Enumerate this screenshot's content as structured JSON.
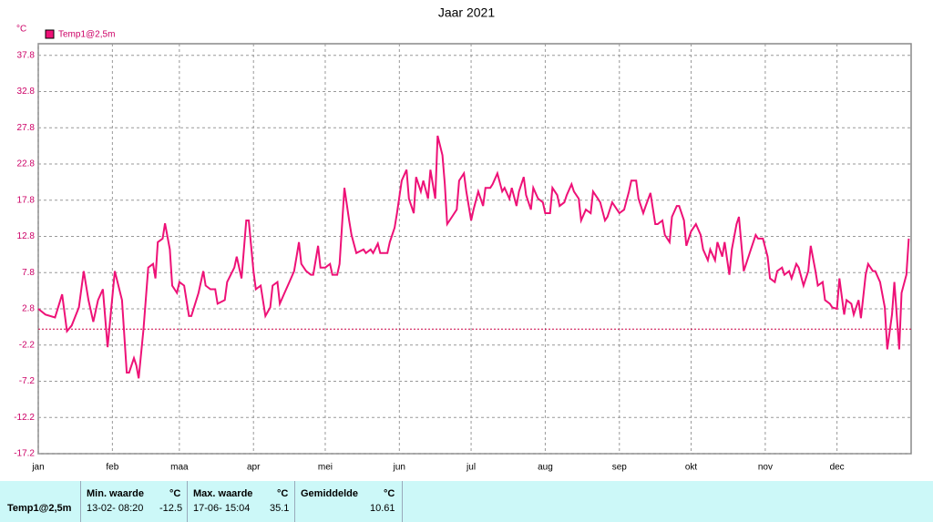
{
  "chart_data": {
    "type": "line",
    "title": "Jaar 2021",
    "y_unit": "°C",
    "xlim": [
      0,
      365
    ],
    "xticks": [
      {
        "value": 0,
        "label": "jan"
      },
      {
        "value": 31,
        "label": "feb"
      },
      {
        "value": 59,
        "label": "maa"
      },
      {
        "value": 90,
        "label": "apr"
      },
      {
        "value": 120,
        "label": "mei"
      },
      {
        "value": 151,
        "label": "jun"
      },
      {
        "value": 181,
        "label": "jul"
      },
      {
        "value": 212,
        "label": "aug"
      },
      {
        "value": 243,
        "label": "sep"
      },
      {
        "value": 273,
        "label": "okt"
      },
      {
        "value": 304,
        "label": "nov"
      },
      {
        "value": 334,
        "label": "dec"
      }
    ],
    "ylim": [
      -17.2,
      39.4
    ],
    "yticks": [
      37.8,
      32.8,
      27.8,
      22.8,
      17.8,
      12.8,
      7.8,
      2.8,
      -2.2,
      -7.2,
      -12.2,
      -17.2
    ],
    "grid": true,
    "reference_line": 0,
    "x": [
      0,
      3,
      7,
      10,
      12,
      14,
      17,
      19,
      21,
      23,
      25,
      27,
      29,
      32,
      35,
      37,
      38,
      40,
      41,
      42,
      44,
      46,
      48,
      49,
      50,
      52,
      53,
      55,
      56,
      58,
      59,
      61,
      63,
      64,
      67,
      69,
      70,
      72,
      74,
      75,
      78,
      79,
      82,
      83,
      85,
      87,
      88,
      90,
      91,
      93,
      95,
      97,
      98,
      100,
      101,
      103,
      105,
      107,
      108,
      109,
      110,
      112,
      114,
      115,
      117,
      118,
      120,
      122,
      123,
      125,
      126,
      128,
      130,
      131,
      133,
      136,
      137,
      139,
      140,
      142,
      143,
      146,
      147,
      149,
      150,
      152,
      154,
      155,
      157,
      158,
      160,
      161,
      163,
      164,
      166,
      167,
      169,
      170,
      171,
      173,
      175,
      176,
      178,
      179,
      181,
      182,
      184,
      186,
      187,
      189,
      190,
      192,
      194,
      195,
      197,
      198,
      200,
      201,
      203,
      204,
      206,
      207,
      209,
      211,
      212,
      214,
      215,
      217,
      218,
      220,
      221,
      223,
      224,
      226,
      227,
      229,
      231,
      232,
      234,
      235,
      237,
      238,
      240,
      242,
      243,
      245,
      247,
      248,
      250,
      251,
      253,
      254,
      256,
      258,
      259,
      261,
      262,
      264,
      265,
      267,
      268,
      270,
      271,
      273,
      275,
      277,
      278,
      280,
      281,
      283,
      284,
      286,
      287,
      289,
      290,
      292,
      293,
      295,
      296,
      298,
      300,
      301,
      303,
      305,
      306,
      308,
      309,
      311,
      312,
      314,
      315,
      317,
      318,
      320,
      322,
      323,
      325,
      326,
      328,
      329,
      331,
      332,
      334,
      335,
      337,
      338,
      340,
      341,
      343,
      344,
      346,
      347,
      349,
      350,
      352,
      354,
      355,
      357,
      358,
      360,
      361,
      363,
      364
    ],
    "series": [
      {
        "name": "Temp1@2,5m",
        "color": "#ee1177",
        "values": [
          2.8,
          2.0,
          1.6,
          4.8,
          -0.3,
          0.5,
          3,
          8,
          4,
          1.0,
          4,
          5.5,
          -2.5,
          8,
          4,
          -6,
          -6,
          -4,
          -5,
          -6.8,
          0,
          8.5,
          9,
          7,
          12,
          12.5,
          14.6,
          11,
          6,
          5,
          6.5,
          6,
          1.8,
          1.8,
          5,
          8,
          6,
          5.5,
          5.5,
          3.5,
          4,
          6.5,
          8.5,
          10,
          7,
          15,
          15,
          8,
          5.5,
          6,
          1.8,
          3,
          6,
          6.5,
          3.5,
          5,
          6.5,
          8,
          10,
          12,
          9,
          8,
          7.5,
          7.5,
          11.5,
          8.5,
          8.5,
          9,
          7.5,
          7.5,
          9,
          19.5,
          15,
          13,
          10.5,
          11,
          10.5,
          11,
          10.5,
          11.8,
          10.5,
          10.5,
          12,
          14,
          16,
          20.5,
          22,
          18,
          16,
          21,
          19,
          20.5,
          18,
          22,
          18,
          26.7,
          24,
          20,
          14.5,
          15.5,
          16.5,
          20.5,
          21.5,
          19,
          15,
          16.5,
          19,
          17,
          19.5,
          19.5,
          20,
          21.5,
          19,
          19.5,
          18,
          19.5,
          17,
          19,
          21,
          18.5,
          16.5,
          19.5,
          18,
          17.5,
          16,
          16,
          19.5,
          18.5,
          17,
          17.5,
          18.5,
          20,
          19,
          18,
          15,
          16.5,
          16,
          19,
          18,
          17.5,
          15,
          15.5,
          17.5,
          16.5,
          16,
          16.5,
          19,
          20.5,
          20.5,
          18,
          16,
          17,
          18.8,
          14.5,
          14.5,
          15,
          13,
          12,
          15.5,
          17,
          17,
          15,
          11.5,
          13.5,
          14.5,
          13,
          11,
          9.5,
          11,
          9.5,
          12,
          10,
          12,
          7.5,
          11,
          14.5,
          15.5,
          8,
          9,
          11,
          13,
          12.5,
          12.5,
          10,
          7,
          6.5,
          8,
          8.5,
          7.5,
          8,
          7,
          9,
          8.5,
          6,
          8,
          11.5,
          8,
          6,
          6.5,
          4,
          3.5,
          3,
          2.8,
          7,
          2,
          4,
          3.5,
          2,
          4,
          1.5,
          7.5,
          9,
          8,
          8,
          6.5,
          3,
          -2.8,
          2,
          6.5,
          -2.8,
          5,
          7.5,
          12.5
        ]
      }
    ]
  },
  "stats": {
    "row_label": "Temp1@2,5m",
    "min": {
      "header": "Min. waarde",
      "unit": "°C",
      "time": "13-02- 08:20",
      "value": "-12.5"
    },
    "max": {
      "header": "Max. waarde",
      "unit": "°C",
      "time": "17-06- 15:04",
      "value": "35.1"
    },
    "avg": {
      "header": "Gemiddelde",
      "unit": "°C",
      "value": "10.61"
    }
  }
}
